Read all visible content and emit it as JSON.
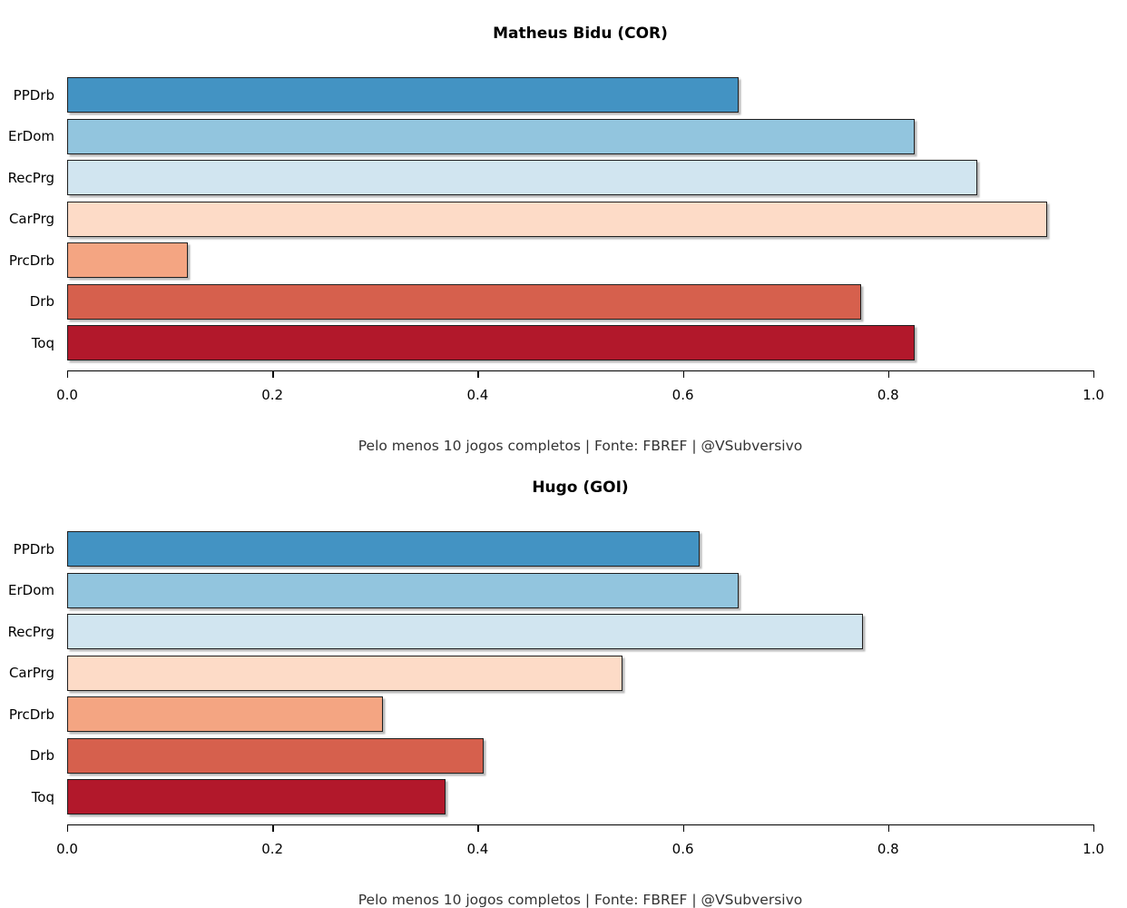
{
  "page": {
    "background": "#ffffff",
    "bar_border_color": "#1f1f1f",
    "axis_color": "#000000",
    "caption_color": "#333333"
  },
  "chart_data": [
    {
      "type": "bar",
      "orientation": "horizontal",
      "title": "Matheus Bidu (COR)",
      "categories": [
        "PPDrb",
        "ErDom",
        "RecPrg",
        "CarPrg",
        "PrcDrb",
        "Drb",
        "Toq"
      ],
      "values": [
        0.654,
        0.826,
        0.887,
        0.955,
        0.118,
        0.774,
        0.826
      ],
      "colors": [
        "#4393C3",
        "#92C5DE",
        "#D1E5F0",
        "#FDDBC7",
        "#F4A582",
        "#D6604D",
        "#B2182B"
      ],
      "xlim": [
        0,
        1
      ],
      "x_ticks": [
        0,
        0.2,
        0.4,
        0.6,
        0.8,
        1.0
      ],
      "x_tick_labels": [
        "0.0",
        "0.2",
        "0.4",
        "0.6",
        "0.8",
        "1.0"
      ],
      "grid": false,
      "legend": false,
      "caption": "Pelo menos 10 jogos completos | Fonte: FBREF | @VSubversivo"
    },
    {
      "type": "bar",
      "orientation": "horizontal",
      "title": "Hugo (GOI)",
      "categories": [
        "PPDrb",
        "ErDom",
        "RecPrg",
        "CarPrg",
        "PrcDrb",
        "Drb",
        "Toq"
      ],
      "values": [
        0.616,
        0.654,
        0.775,
        0.541,
        0.308,
        0.406,
        0.369
      ],
      "colors": [
        "#4393C3",
        "#92C5DE",
        "#D1E5F0",
        "#FDDBC7",
        "#F4A582",
        "#D6604D",
        "#B2182B"
      ],
      "xlim": [
        0,
        1
      ],
      "x_ticks": [
        0,
        0.2,
        0.4,
        0.6,
        0.8,
        1.0
      ],
      "x_tick_labels": [
        "0.0",
        "0.2",
        "0.4",
        "0.6",
        "0.8",
        "1.0"
      ],
      "grid": false,
      "legend": false,
      "caption": "Pelo menos 10 jogos completos | Fonte: FBREF | @VSubversivo"
    }
  ]
}
